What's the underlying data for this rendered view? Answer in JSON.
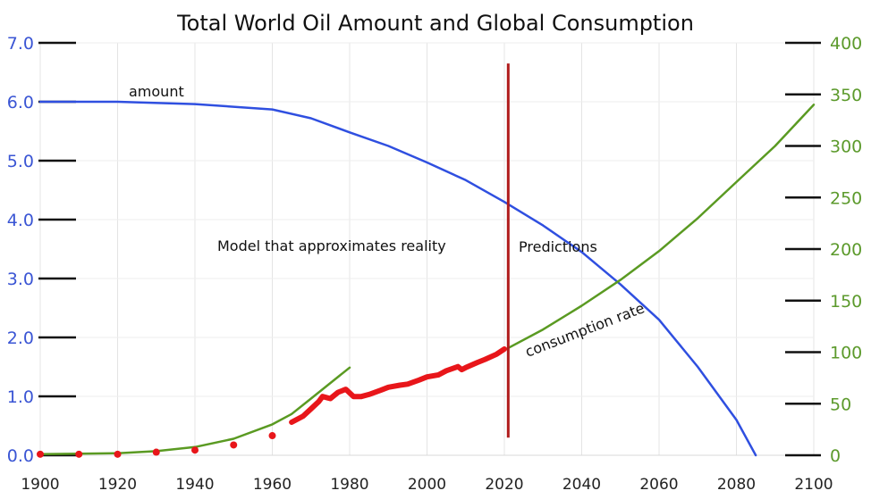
{
  "chart_data": {
    "type": "line",
    "title": "Total World Oil Amount and Global Consumption",
    "xlim": [
      1900,
      2100
    ],
    "x_ticks": [
      1900,
      1920,
      1940,
      1960,
      1980,
      2000,
      2020,
      2040,
      2060,
      2080,
      2100
    ],
    "y_left": {
      "lim": [
        0,
        7
      ],
      "ticks": [
        "0.0",
        "1.0",
        "2.0",
        "3.0",
        "4.0",
        "5.0",
        "6.0",
        "7.0"
      ],
      "color": "#3a55d4"
    },
    "y_right": {
      "lim": [
        0,
        400
      ],
      "ticks": [
        "0",
        "50",
        "100",
        "150",
        "200",
        "250",
        "300",
        "350",
        "400"
      ],
      "color": "#5c9a2c"
    },
    "grid": true,
    "series": [
      {
        "name": "amount",
        "axis": "left",
        "color": "#2f4fe0",
        "x": [
          1900,
          1920,
          1940,
          1960,
          1970,
          1980,
          1990,
          2000,
          2010,
          2020,
          2030,
          2040,
          2050,
          2060,
          2070,
          2080,
          2085
        ],
        "y": [
          6.0,
          6.0,
          5.96,
          5.87,
          5.72,
          5.48,
          5.25,
          4.97,
          4.67,
          4.3,
          3.9,
          3.45,
          2.9,
          2.3,
          1.5,
          0.6,
          0.0
        ]
      },
      {
        "name": "consumption rate",
        "axis": "right",
        "color": "#5a9a22",
        "x": [
          2020,
          2030,
          2040,
          2050,
          2060,
          2070,
          2080,
          2090,
          2100
        ],
        "y": [
          102,
          122,
          145,
          170,
          198,
          230,
          265,
          300,
          340
        ]
      },
      {
        "axis": "right",
        "color": "#5a9a22",
        "x": [
          1900,
          1910,
          1920,
          1930,
          1940,
          1950,
          1960,
          1965,
          1970,
          1975,
          1980
        ],
        "y": [
          1,
          1.5,
          2,
          4,
          8,
          16,
          30,
          40,
          55,
          70,
          85
        ]
      },
      {
        "axis": "right",
        "color": "#e8161a",
        "style": "points",
        "x": [
          1900,
          1910,
          1920,
          1930,
          1940,
          1950,
          1960
        ],
        "y": [
          1,
          1,
          1,
          3,
          5,
          10,
          19
        ]
      },
      {
        "axis": "right",
        "color": "#e8161a",
        "style": "thick-line",
        "x": [
          1965,
          1968,
          1970,
          1972,
          1973,
          1975,
          1977,
          1979,
          1981,
          1983,
          1985,
          1988,
          1990,
          1993,
          1995,
          1998,
          2000,
          2003,
          2005,
          2008,
          2009,
          2010,
          2013,
          2015,
          2018,
          2020
        ],
        "y": [
          32,
          38,
          45,
          52,
          57,
          55,
          61,
          64,
          57,
          57,
          59,
          63,
          66,
          68,
          69,
          73,
          76,
          78,
          82,
          86,
          83,
          85,
          90,
          93,
          98,
          103
        ]
      }
    ],
    "vline": {
      "x": 2021,
      "y_from": 0.3,
      "y_to": 6.65,
      "color": "#b01c1c"
    },
    "annotations": {
      "amount": "amount",
      "model": "Model that approximates reality",
      "predictions": "Predictions",
      "consumption": "consumption rate"
    }
  }
}
